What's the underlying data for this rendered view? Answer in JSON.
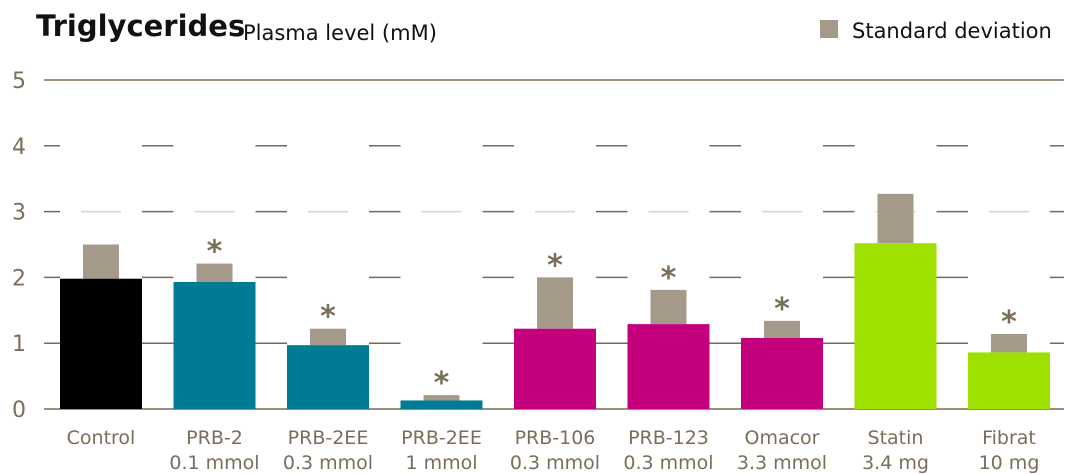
{
  "chart_data": {
    "type": "bar",
    "title": "Triglycerides",
    "subtitle": "Plasma level (mM)",
    "legend": {
      "label": "Standard deviation",
      "color": "#a59a8a",
      "placement": "top-right"
    },
    "ylim": [
      0,
      5
    ],
    "yticks": [
      "0",
      "1",
      "2",
      "3",
      "4",
      "5"
    ],
    "grid": true,
    "categories": [
      {
        "line1": "Control",
        "line2": ""
      },
      {
        "line1": "PRB-2",
        "line2": "0.1 mmol"
      },
      {
        "line1": "PRB-2EE",
        "line2": "0.3 mmol"
      },
      {
        "line1": "PRB-2EE",
        "line2": "1 mmol"
      },
      {
        "line1": "PRB-106",
        "line2": "0.3 mmol"
      },
      {
        "line1": "PRB-123",
        "line2": "0.3 mmol"
      },
      {
        "line1": "Omacor",
        "line2": "3.3 mmol"
      },
      {
        "line1": "Statin",
        "line2": "3.4 mg"
      },
      {
        "line1": "Fibrat",
        "line2": "10 mg"
      }
    ],
    "values": [
      1.98,
      1.93,
      0.97,
      0.13,
      1.22,
      1.29,
      1.08,
      2.52,
      0.86
    ],
    "std_dev": [
      0.52,
      0.28,
      0.25,
      0.08,
      0.78,
      0.52,
      0.26,
      0.75,
      0.28
    ],
    "colors": [
      "#000000",
      "#007b93",
      "#007b93",
      "#007b93",
      "#c4007d",
      "#c4007d",
      "#c4007d",
      "#9ee000",
      "#9ee000"
    ],
    "significant": [
      false,
      true,
      true,
      true,
      true,
      true,
      true,
      false,
      true
    ],
    "significance_marker": "*"
  },
  "colors": {
    "text": "#111111",
    "axis_text": "#7a6e5a",
    "grid": "#7a6a50",
    "star": "#7a6e5a"
  }
}
